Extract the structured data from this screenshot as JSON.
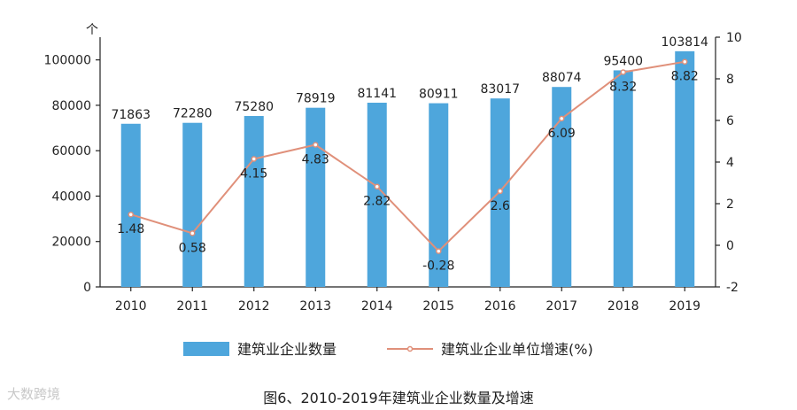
{
  "chart_data": {
    "type": "bar+line",
    "categories": [
      "2010",
      "2011",
      "2012",
      "2013",
      "2014",
      "2015",
      "2016",
      "2017",
      "2018",
      "2019"
    ],
    "series": [
      {
        "name": "建筑业企业数量",
        "type": "bar",
        "axis": "left",
        "values": [
          71863,
          72280,
          75280,
          78919,
          81141,
          80911,
          83017,
          88074,
          95400,
          103814
        ],
        "labels": [
          "71863",
          "72280",
          "75280",
          "78919",
          "81141",
          "80911",
          "83017",
          "88074",
          "95400",
          "103814"
        ]
      },
      {
        "name": "建筑业企业单位增速(%)",
        "type": "line",
        "axis": "right",
        "values": [
          1.48,
          0.58,
          4.15,
          4.83,
          2.82,
          -0.28,
          2.6,
          6.09,
          8.32,
          8.82
        ],
        "labels": [
          "1.48",
          "0.58",
          "4.15",
          "4.83",
          "2.82",
          "-0.28",
          "2.6",
          "6.09",
          "8.32",
          "8.82"
        ]
      }
    ],
    "y_left": {
      "unit": "个",
      "ylim": [
        0,
        110000
      ],
      "ticks": [
        0,
        20000,
        40000,
        60000,
        80000,
        100000
      ],
      "tick_labels": [
        "0",
        "20000",
        "40000",
        "60000",
        "80000",
        "100000"
      ]
    },
    "y_right": {
      "ylim": [
        -2,
        10
      ],
      "ticks": [
        -2,
        0,
        2,
        4,
        6,
        8,
        10
      ],
      "tick_labels": [
        "-2",
        "0",
        "2",
        "4",
        "6",
        "8",
        "10"
      ]
    },
    "legend": [
      "建筑业企业数量",
      "建筑业企业单位增速(%)"
    ],
    "legend_position": "bottom",
    "grid": false
  },
  "caption": "图6、2010-2019年建筑业企业数量及增速",
  "watermark": "大数跨境",
  "colors": {
    "bar": "#4ea6dc",
    "line": "#e0907a",
    "axis": "#222222"
  }
}
